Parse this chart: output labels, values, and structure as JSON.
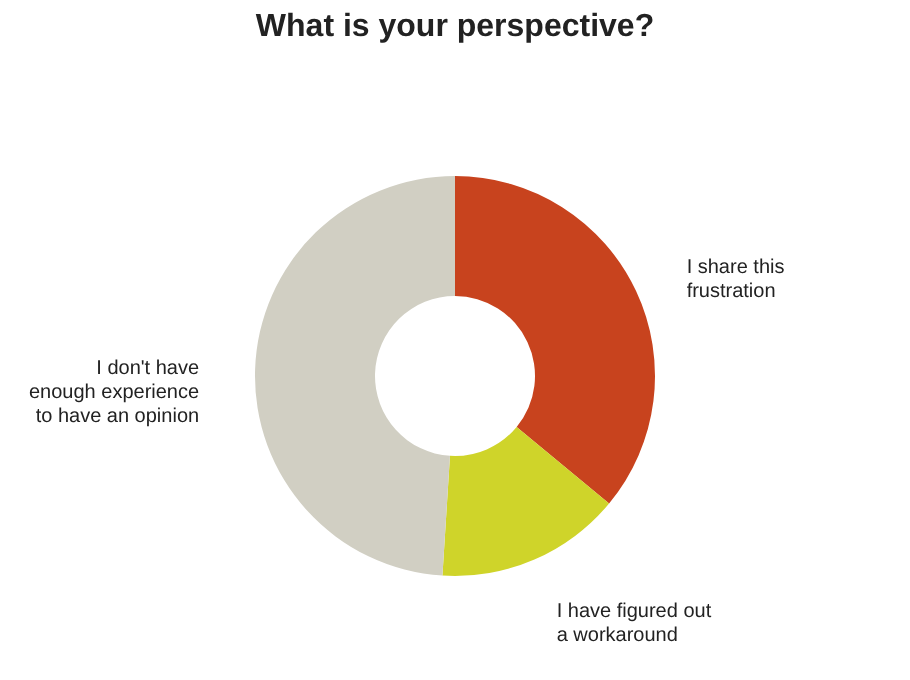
{
  "chart_data": {
    "type": "donut",
    "title": "What is your perspective?",
    "categories": [
      "I share this frustration",
      "I have figured out a workaround",
      "I don't have enough experience to have an opinion"
    ],
    "values": [
      36,
      15,
      49
    ],
    "colors": [
      "#c8431e",
      "#cfd42a",
      "#d1cfc3"
    ],
    "legend": false
  }
}
